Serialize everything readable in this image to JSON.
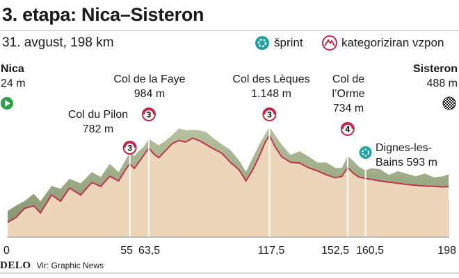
{
  "header": {
    "title": "3. etapa: Nica–Sisteron",
    "subtitle": "31. avgust, 198 km"
  },
  "legend": {
    "sprint_label": "šprint",
    "climb_label": "kategoriziran vzpon"
  },
  "start": {
    "name": "Nica",
    "elev": "24 m"
  },
  "finish": {
    "name": "Sisteron",
    "elev": "488 m"
  },
  "climbs": [
    {
      "name": "Col du Pilon",
      "elev": "782 m",
      "cat": "3",
      "km": 55
    },
    {
      "name": "Col de la Faye",
      "elev": "984 m",
      "cat": "3",
      "km": 63.5
    },
    {
      "name": "Col des Lèques",
      "elev": "1.148 m",
      "cat": "3",
      "km": 117.5
    },
    {
      "name": "Col de",
      "name2": "l’Orme",
      "elev": "734 m",
      "cat": "4",
      "km": 152.5
    }
  ],
  "sprint": {
    "name": "Dignes-les-",
    "name2": "Bains 593 m",
    "km": 160.5
  },
  "colors": {
    "ground": "#ecd5b8",
    "relief": "#9aa883",
    "line": "#c22848",
    "sprint": "#1aa3a0",
    "start": "#2aa24a"
  },
  "footer": {
    "brand": "DELO",
    "source": "Vir: Graphic News"
  },
  "chart_data": {
    "type": "area",
    "xlabel": "",
    "ylabel": "",
    "x_ticks": [
      "0",
      "55",
      "63,5",
      "117,5",
      "152,5",
      "160,5",
      "198"
    ],
    "xlim": [
      0,
      198
    ],
    "ylim": [
      0,
      1200
    ],
    "profile": [
      [
        0,
        24
      ],
      [
        4,
        90
      ],
      [
        8,
        210
      ],
      [
        12,
        240
      ],
      [
        15,
        150
      ],
      [
        20,
        380
      ],
      [
        24,
        300
      ],
      [
        28,
        470
      ],
      [
        33,
        380
      ],
      [
        38,
        540
      ],
      [
        42,
        490
      ],
      [
        46,
        620
      ],
      [
        50,
        560
      ],
      [
        53,
        700
      ],
      [
        55,
        782
      ],
      [
        57,
        720
      ],
      [
        59,
        800
      ],
      [
        61,
        880
      ],
      [
        63.5,
        984
      ],
      [
        66,
        900
      ],
      [
        68,
        860
      ],
      [
        71,
        950
      ],
      [
        74,
        1040
      ],
      [
        77,
        1080
      ],
      [
        80,
        1060
      ],
      [
        83,
        1110
      ],
      [
        86,
        1080
      ],
      [
        89,
        1030
      ],
      [
        92,
        980
      ],
      [
        96,
        920
      ],
      [
        100,
        800
      ],
      [
        104,
        700
      ],
      [
        107,
        560
      ],
      [
        110,
        700
      ],
      [
        113,
        880
      ],
      [
        115.5,
        1050
      ],
      [
        117.5,
        1148
      ],
      [
        120,
        1000
      ],
      [
        123,
        870
      ],
      [
        127,
        800
      ],
      [
        131,
        790
      ],
      [
        135,
        730
      ],
      [
        139,
        690
      ],
      [
        143,
        640
      ],
      [
        147,
        600
      ],
      [
        150,
        620
      ],
      [
        152.5,
        734
      ],
      [
        155,
        660
      ],
      [
        157.5,
        610
      ],
      [
        160.5,
        593
      ],
      [
        163,
        580
      ],
      [
        167,
        560
      ],
      [
        171,
        545
      ],
      [
        175,
        530
      ],
      [
        179,
        515
      ],
      [
        183,
        505
      ],
      [
        187,
        495
      ],
      [
        191,
        490
      ],
      [
        195,
        484
      ],
      [
        198,
        488
      ]
    ]
  }
}
